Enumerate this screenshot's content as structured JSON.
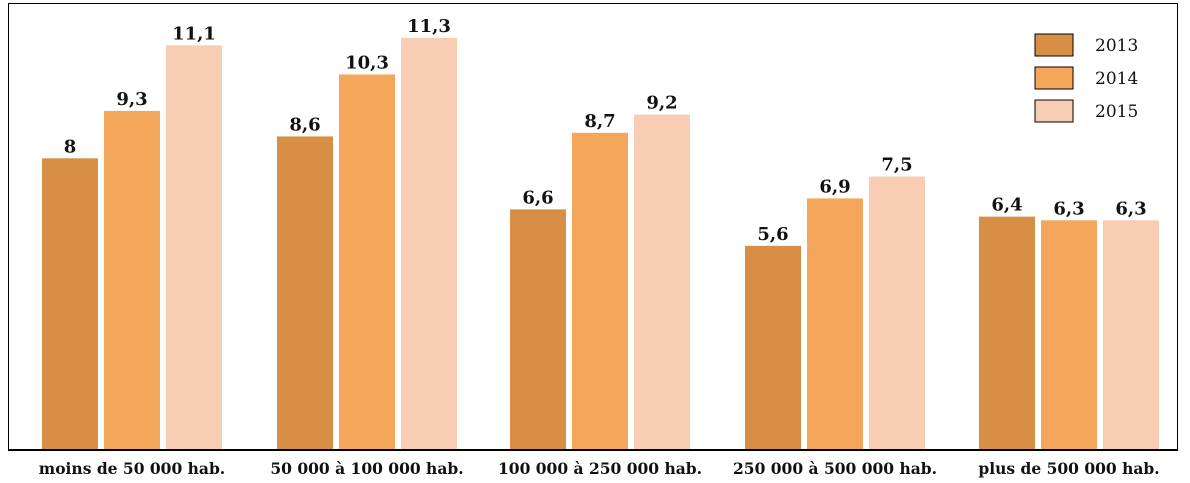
{
  "chart_data": {
    "type": "bar",
    "categories": [
      "moins de 50 000 hab.",
      "50 000 à 100 000 hab.",
      "100 000 à 250 000 hab.",
      "250 000 à 500 000 hab.",
      "plus de 500 000 hab."
    ],
    "series": [
      {
        "name": "2013",
        "values": [
          8,
          8.6,
          6.6,
          5.6,
          6.4
        ],
        "labels": [
          "8",
          "8,6",
          "6,6",
          "5,6",
          "6,4"
        ],
        "color": "#d68f45"
      },
      {
        "name": "2014",
        "values": [
          9.3,
          10.3,
          8.7,
          6.9,
          6.3
        ],
        "labels": [
          "9,3",
          "10,3",
          "8,7",
          "6,9",
          "6,3"
        ],
        "color": "#f4a65a"
      },
      {
        "name": "2015",
        "values": [
          11.1,
          11.3,
          9.2,
          7.5,
          6.3
        ],
        "labels": [
          "11,1",
          "11,3",
          "9,2",
          "7,5",
          "6,3"
        ],
        "color": "#f9cdb4"
      }
    ],
    "ylim": [
      0,
      11.3
    ],
    "grid": false,
    "legend_position": "top-right"
  }
}
